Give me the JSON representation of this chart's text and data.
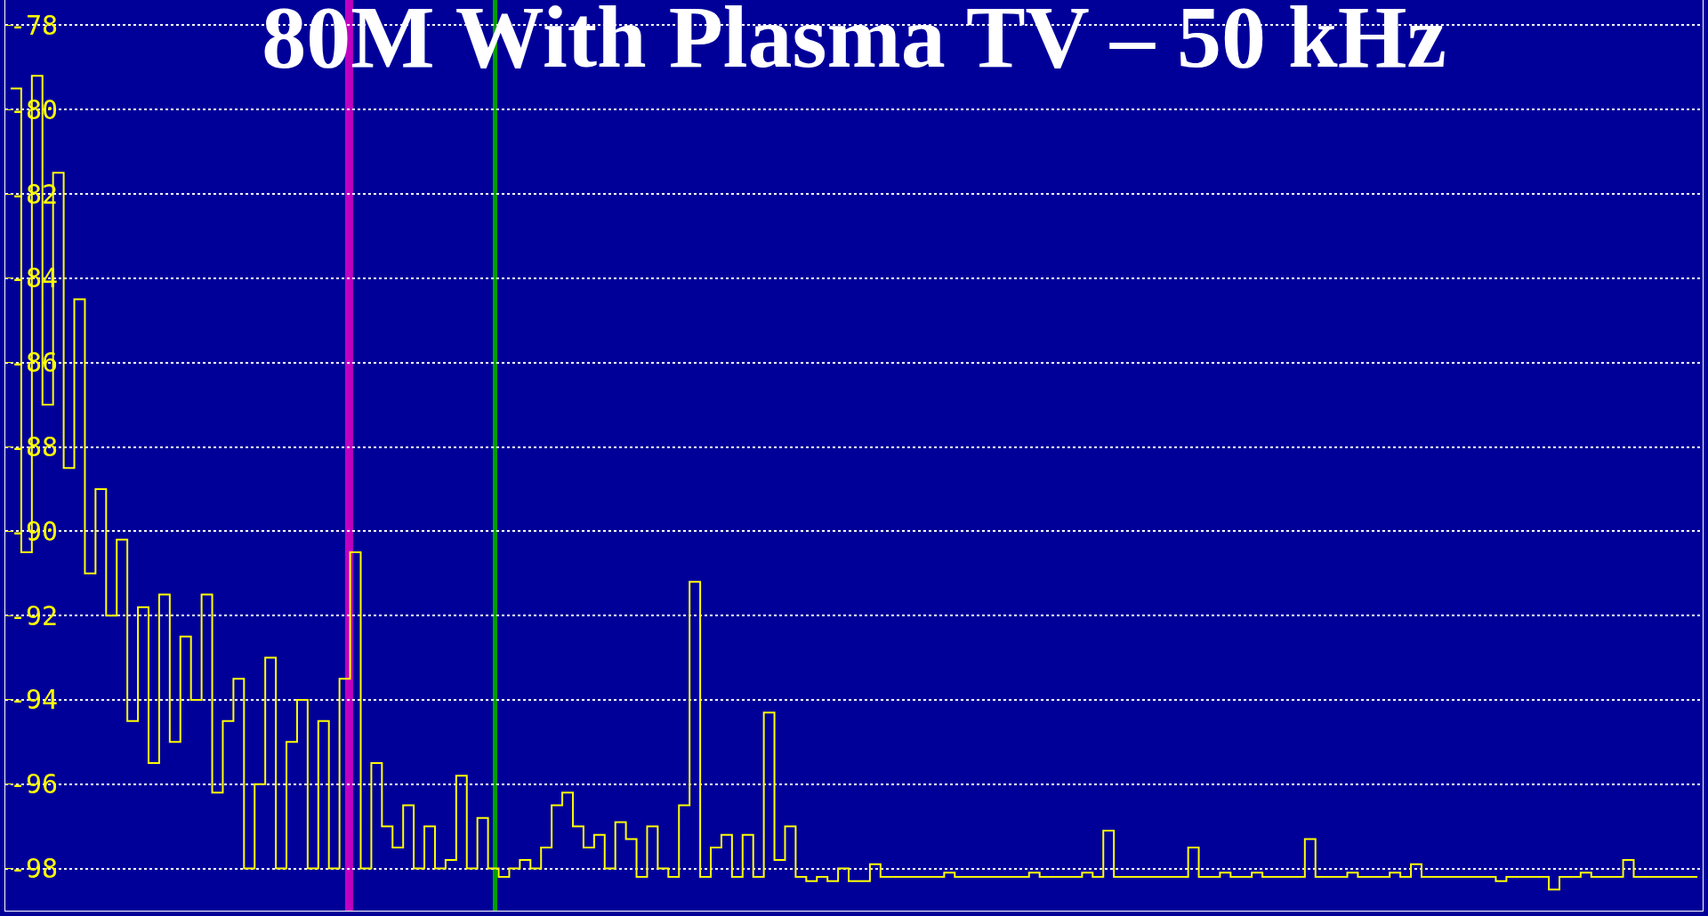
{
  "chart_data": {
    "type": "step",
    "title": "80M With Plasma TV – 50 kHz",
    "categories": [
      null,
      null,
      null,
      null,
      null,
      null,
      null,
      null,
      null,
      null,
      null,
      null,
      null,
      null,
      null,
      null,
      null,
      null,
      null,
      null,
      null,
      null,
      null,
      null,
      null,
      null,
      null,
      null,
      null,
      null,
      null,
      null,
      null,
      null,
      null,
      null,
      null,
      null,
      null,
      null,
      null,
      null,
      null,
      null,
      null,
      null,
      null,
      null,
      null,
      null,
      null,
      null,
      null,
      null,
      null,
      null,
      null,
      null,
      null,
      null,
      null,
      null,
      null,
      null,
      null,
      null,
      null,
      null,
      null,
      null,
      null,
      null,
      null,
      null,
      null,
      null,
      null,
      null,
      null,
      null,
      null,
      null,
      null,
      null,
      null,
      null,
      null,
      null,
      null,
      null,
      null,
      null,
      null,
      null,
      null,
      null,
      null,
      null,
      null,
      null,
      null,
      null,
      null,
      null,
      null,
      null,
      null,
      null,
      null,
      null,
      null,
      null,
      null,
      null,
      null,
      null,
      null,
      null,
      null,
      null,
      null,
      null,
      null,
      null,
      null,
      null,
      null,
      null,
      null,
      null,
      null,
      null,
      null,
      null,
      null,
      null,
      null,
      null,
      null,
      null,
      null,
      null,
      null,
      null,
      null,
      null,
      null,
      null,
      null,
      null,
      null,
      null,
      null,
      null,
      null,
      null,
      null,
      null,
      null,
      null
    ],
    "series": [
      {
        "color": "#ffff00",
        "values": [
          -79.5,
          -90.5,
          -79.2,
          -87,
          -81.5,
          -88.5,
          -84.5,
          -91,
          -89,
          -92,
          -90.2,
          -94.5,
          -91.8,
          -95.5,
          -91.5,
          -95,
          -92.5,
          -94,
          -91.5,
          -96.2,
          -94.5,
          -93.5,
          -98,
          -96,
          -93,
          -98,
          -95,
          -94,
          -98,
          -94.5,
          -98,
          -93.5,
          -90.5,
          -98,
          -95.5,
          -97,
          -97.5,
          -96.5,
          -98,
          -97,
          -98,
          -97.8,
          -95.8,
          -98,
          -96.8,
          -98,
          -98.2,
          -98,
          -97.8,
          -98,
          -97.5,
          -96.5,
          -96.2,
          -97,
          -97.5,
          -97.2,
          -98,
          -96.9,
          -97.3,
          -98.2,
          -97,
          -98,
          -98.2,
          -96.5,
          -91.2,
          -98.2,
          -97.5,
          -97.2,
          -98.2,
          -97.2,
          -98.2,
          -94.3,
          -97.8,
          -97,
          -98.2,
          -98.3,
          -98.2,
          -98.3,
          -98,
          -98.3,
          -98.3,
          -97.9,
          -98.2,
          -98.2,
          -98.2,
          -98.2,
          -98.2,
          -98.2,
          -98.1,
          -98.2,
          -98.2,
          -98.2,
          -98.2,
          -98.2,
          -98.2,
          -98.2,
          -98.1,
          -98.2,
          -98.2,
          -98.2,
          -98.2,
          -98.1,
          -98.2,
          -97.1,
          -98.2,
          -98.2,
          -98.2,
          -98.2,
          -98.2,
          -98.2,
          -98.2,
          -97.5,
          -98.2,
          -98.2,
          -98.1,
          -98.2,
          -98.2,
          -98.1,
          -98.2,
          -98.2,
          -98.2,
          -98.2,
          -97.3,
          -98.2,
          -98.2,
          -98.2,
          -98.1,
          -98.2,
          -98.2,
          -98.2,
          -98.1,
          -98.2,
          -97.9,
          -98.2,
          -98.2,
          -98.2,
          -98.2,
          -98.2,
          -98.2,
          -98.2,
          -98.3,
          -98.2,
          -98.2,
          -98.2,
          -98.2,
          -98.5,
          -98.2,
          -98.2,
          -98.1,
          -98.2,
          -98.2,
          -98.2,
          -97.8,
          -98.2,
          -98.2,
          -98.2,
          -98.2,
          -98.2,
          -98.2,
          -98.2
        ]
      }
    ],
    "ylim": [
      -99,
      -77.4
    ],
    "yticks": [
      -78,
      -80,
      -82,
      -84,
      -86,
      -88,
      -90,
      -92,
      -94,
      -96,
      -98
    ],
    "grid": "y"
  }
}
